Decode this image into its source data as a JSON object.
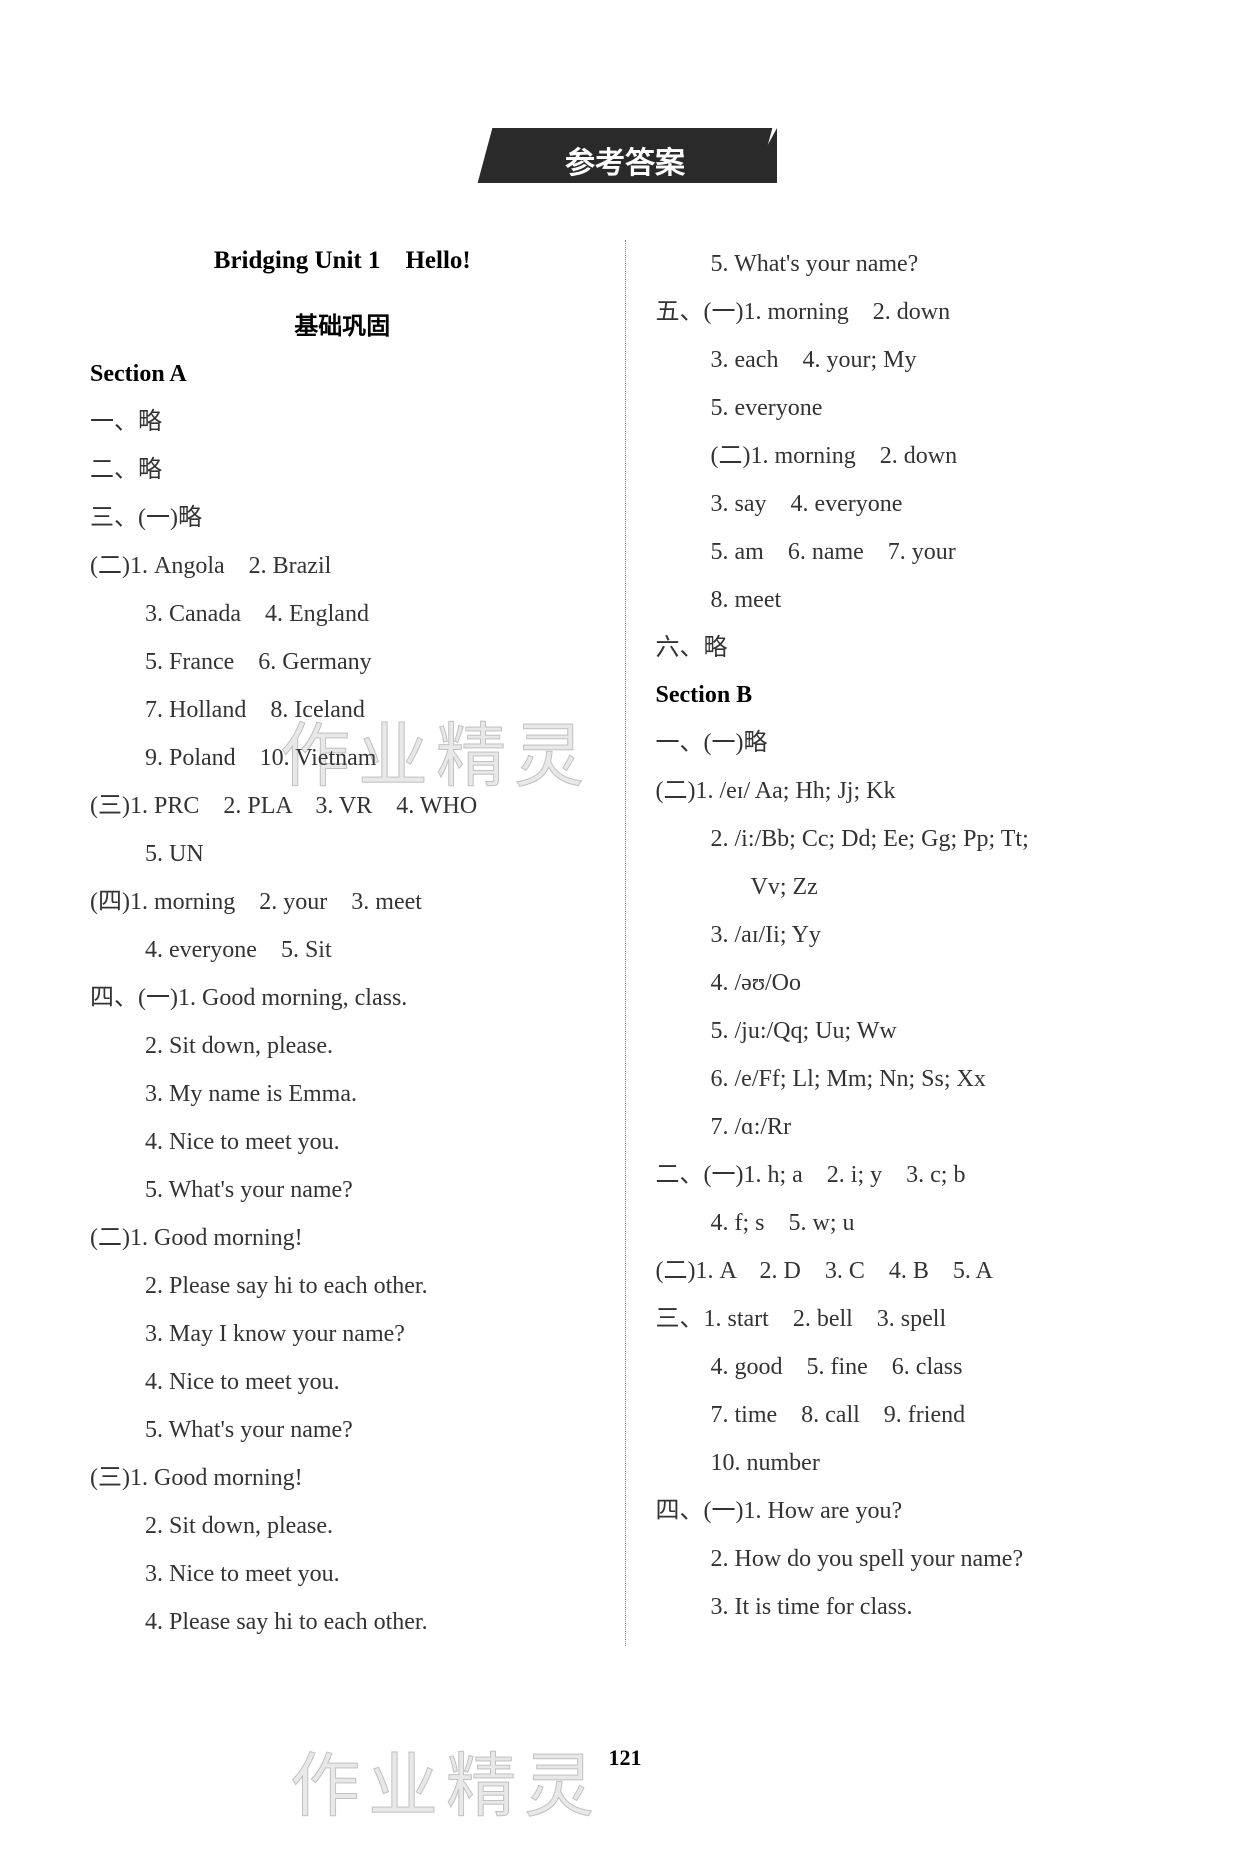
{
  "banner": "参考答案",
  "page_number": "121",
  "watermark": "作业精灵",
  "left": {
    "unit_title": "Bridging Unit 1　Hello!",
    "sub_title": "基础巩固",
    "section_a": "Section A",
    "l1": "一、略",
    "l2": "二、略",
    "l3": "三、(一)略",
    "l4": "(二)1. Angola　2. Brazil",
    "l5": "3. Canada　4. England",
    "l6": "5. France　6. Germany",
    "l7": "7. Holland　8. Iceland",
    "l8": "9. Poland　10. Vietnam",
    "l9": "(三)1. PRC　2. PLA　3. VR　4. WHO",
    "l10": "5. UN",
    "l11": "(四)1. morning　2. your　3. meet",
    "l12": "4. everyone　5. Sit",
    "l13": "四、(一)1. Good morning, class.",
    "l14": "2. Sit down, please.",
    "l15": "3. My name is Emma.",
    "l16": "4. Nice to meet you.",
    "l17": "5. What's your name?",
    "l18": "(二)1. Good morning!",
    "l19": "2. Please say hi to each other.",
    "l20": "3. May I know your name?",
    "l21": "4. Nice to meet you.",
    "l22": "5. What's your name?",
    "l23": "(三)1. Good morning!",
    "l24": "2. Sit down, please.",
    "l25": "3. Nice to meet you.",
    "l26": "4. Please say hi to each other."
  },
  "right": {
    "r1": "5. What's your name?",
    "r2": "五、(一)1. morning　2. down",
    "r3": "3. each　4. your; My",
    "r4": "5. everyone",
    "r5": "(二)1. morning　2. down",
    "r6": "3. say　4. everyone",
    "r7": "5. am　6. name　7. your",
    "r8": "8. meet",
    "r9": "六、略",
    "section_b": "Section B",
    "r10": "一、(一)略",
    "r11": "(二)1. /eɪ/ Aa; Hh; Jj; Kk",
    "r12": "2. /i:/Bb; Cc; Dd; Ee; Gg; Pp; Tt;",
    "r13": "Vv; Zz",
    "r14": "3. /aɪ/Ii; Yy",
    "r15": "4. /əʊ/Oo",
    "r16": "5. /ju:/Qq; Uu; Ww",
    "r17": "6. /e/Ff; Ll; Mm; Nn; Ss; Xx",
    "r18": "7. /ɑ:/Rr",
    "r19": "二、(一)1. h; a　2. i; y　3. c; b",
    "r20": "4. f; s　5. w; u",
    "r21": "(二)1. A　2. D　3. C　4. B　5. A",
    "r22": "三、1. start　2. bell　3. spell",
    "r23": "4. good　5. fine　6. class",
    "r24": "7. time　8. call　9. friend",
    "r25": "10. number",
    "r26": "四、(一)1. How are you?",
    "r27": "2. How do you spell your name?",
    "r28": "3. It is time for class."
  }
}
